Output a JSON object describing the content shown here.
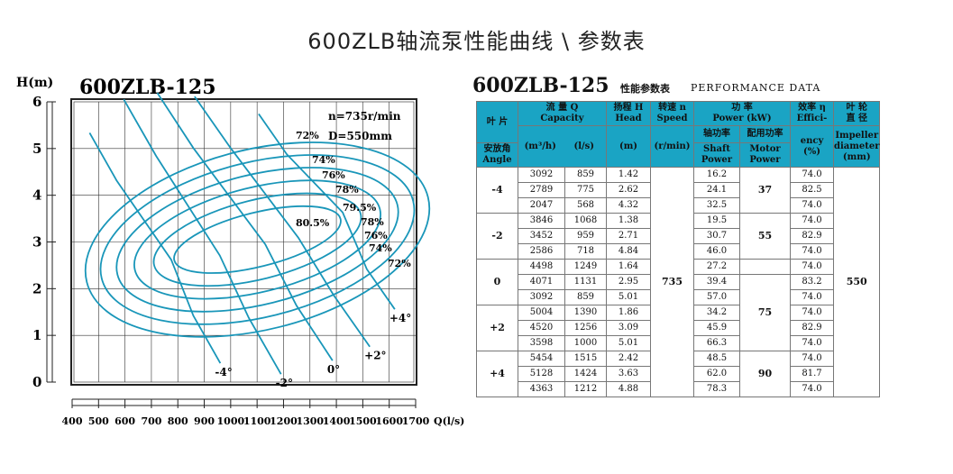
{
  "page": {
    "title": "600ZLB轴流泵性能曲线 \\ 参数表"
  },
  "chart_data": {
    "type": "line",
    "model": "600ZLB-125",
    "ylabel": "H(m)",
    "xlabel": "Q(l/s)",
    "xlim": [
      400,
      1700
    ],
    "ylim": [
      0,
      6
    ],
    "x_ticks": [
      "400",
      "500",
      "600",
      "700",
      "800",
      "900",
      "1000",
      "1100",
      "1200",
      "1300",
      "1400",
      "1500",
      "1600",
      "1700"
    ],
    "y_ticks": [
      "0",
      "1",
      "2",
      "3",
      "4",
      "5",
      "6"
    ],
    "annotation_speed": "n=735r/min",
    "annotation_diameter": "D=550mm",
    "grid": true,
    "angle_curves": [
      {
        "label": "-4°",
        "points": [
          [
            568,
            4.32
          ],
          [
            775,
            2.62
          ],
          [
            859,
            1.42
          ]
        ]
      },
      {
        "label": "-2°",
        "points": [
          [
            718,
            4.84
          ],
          [
            959,
            2.71
          ],
          [
            1068,
            1.38
          ]
        ]
      },
      {
        "label": "0°",
        "points": [
          [
            859,
            5.01
          ],
          [
            1131,
            2.95
          ],
          [
            1249,
            1.64
          ]
        ]
      },
      {
        "label": "+2°",
        "points": [
          [
            1000,
            5.01
          ],
          [
            1256,
            3.09
          ],
          [
            1390,
            1.86
          ]
        ]
      },
      {
        "label": "+4°",
        "points": [
          [
            1212,
            4.88
          ],
          [
            1424,
            3.63
          ],
          [
            1515,
            2.42
          ]
        ]
      }
    ],
    "efficiency_labels": [
      "72%",
      "74%",
      "76%",
      "78%",
      "79.5%",
      "80.5%",
      "78%",
      "76%",
      "74%",
      "72%"
    ]
  },
  "table": {
    "model": "600ZLB-125",
    "subtitle": "性能参数表",
    "subtitle_en": "PERFORMANCE  DATA",
    "headers": {
      "angle_cn1": "叶 片",
      "angle_cn2": "安放角",
      "angle_en": "Angle",
      "flow_cn": "流  量 Q",
      "flow_en": "Capacity",
      "flow_unit1": "(m³/h)",
      "flow_unit2": "(l/s)",
      "head_cn": "扬程 H",
      "head_en": "Head",
      "head_unit": "(m)",
      "speed_cn": "转速 n",
      "speed_en": "Speed",
      "speed_unit": "(r/min)",
      "power_cn": "功      率",
      "power_en": "Power  (kW)",
      "shaft_cn": "轴功率",
      "shaft_en1": "Shaft",
      "shaft_en2": "Power",
      "motor_cn": "配用功率",
      "motor_en1": "Motor",
      "motor_en2": "Power",
      "eff_cn": "效率 η",
      "eff_en1": "Effici-",
      "eff_en2": "ency",
      "eff_unit": "(%)",
      "imp_cn1": "叶 轮",
      "imp_cn2": "直 径",
      "imp_en1": "Impeller",
      "imp_en2": "diameter",
      "imp_unit": "(mm)"
    },
    "speed": "735",
    "impeller": "550",
    "groups": [
      {
        "angle": "-4",
        "motor": "37",
        "rows": [
          {
            "m3h": "3092",
            "ls": "859",
            "head": "1.42",
            "shaft": "16.2",
            "eff": "74.0"
          },
          {
            "m3h": "2789",
            "ls": "775",
            "head": "2.62",
            "shaft": "24.1",
            "eff": "82.5"
          },
          {
            "m3h": "2047",
            "ls": "568",
            "head": "4.32",
            "shaft": "32.5",
            "eff": "74.0"
          }
        ]
      },
      {
        "angle": "-2",
        "motor": "55",
        "rows": [
          {
            "m3h": "3846",
            "ls": "1068",
            "head": "1.38",
            "shaft": "19.5",
            "eff": "74.0"
          },
          {
            "m3h": "3452",
            "ls": "959",
            "head": "2.71",
            "shaft": "30.7",
            "eff": "82.9"
          },
          {
            "m3h": "2586",
            "ls": "718",
            "head": "4.84",
            "shaft": "46.0",
            "eff": "74.0"
          }
        ]
      },
      {
        "angle": "0",
        "motor": "",
        "rows": [
          {
            "m3h": "4498",
            "ls": "1249",
            "head": "1.64",
            "shaft": "27.2",
            "eff": "74.0"
          },
          {
            "m3h": "4071",
            "ls": "1131",
            "head": "2.95",
            "shaft": "39.4",
            "eff": "83.2"
          },
          {
            "m3h": "3092",
            "ls": "859",
            "head": "5.01",
            "shaft": "57.0",
            "eff": "74.0"
          }
        ]
      },
      {
        "angle": "+2",
        "motor": "",
        "rows": [
          {
            "m3h": "5004",
            "ls": "1390",
            "head": "1.86",
            "shaft": "34.2",
            "eff": "74.0"
          },
          {
            "m3h": "4520",
            "ls": "1256",
            "head": "3.09",
            "shaft": "45.9",
            "eff": "82.9"
          },
          {
            "m3h": "3598",
            "ls": "1000",
            "head": "5.01",
            "shaft": "66.3",
            "eff": "74.0"
          }
        ]
      },
      {
        "angle": "+4",
        "motor": "90",
        "rows": [
          {
            "m3h": "5454",
            "ls": "1515",
            "head": "2.42",
            "shaft": "48.5",
            "eff": "74.0"
          },
          {
            "m3h": "5128",
            "ls": "1424",
            "head": "3.63",
            "shaft": "62.0",
            "eff": "81.7"
          },
          {
            "m3h": "4363",
            "ls": "1212",
            "head": "4.88",
            "shaft": "78.3",
            "eff": "74.0"
          }
        ]
      }
    ],
    "motor_merged_0_2": "75"
  },
  "colors": {
    "curve": "#1996b9",
    "header_bg": "#1aa4c4"
  }
}
